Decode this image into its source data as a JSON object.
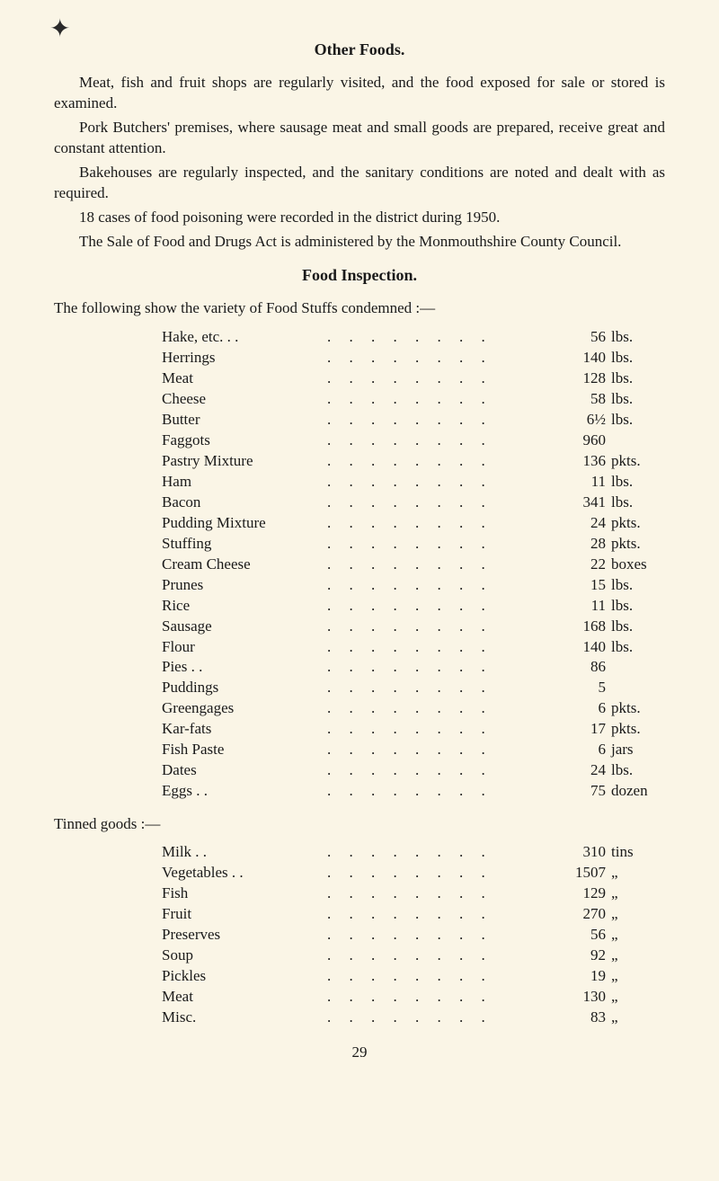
{
  "marker_glyph": "✦",
  "title1": "Other Foods.",
  "para1": "Meat, fish and fruit shops are regularly visited, and the food exposed for sale or stored is examined.",
  "para2": "Pork Butchers' premises, where sausage meat and small goods are prepared, receive great and constant attention.",
  "para3": "Bakehouses are regularly inspected, and the sanitary conditions are noted and dealt with as required.",
  "para4": "18 cases of food poisoning were recorded in the district during 1950.",
  "para5": "The Sale of Food and Drugs Act is administered by the Monmouthshire County Council.",
  "title2": "Food Inspection.",
  "intro2": "The following show the variety of Food Stuffs condemned :—",
  "items": [
    {
      "label": "Hake, etc. . .",
      "value": "56",
      "unit": "lbs."
    },
    {
      "label": "Herrings",
      "value": "140",
      "unit": "lbs."
    },
    {
      "label": "Meat",
      "value": "128",
      "unit": "lbs."
    },
    {
      "label": "Cheese",
      "value": "58",
      "unit": "lbs."
    },
    {
      "label": "Butter",
      "value": "6½",
      "unit": "lbs."
    },
    {
      "label": "Faggots",
      "value": "960",
      "unit": ""
    },
    {
      "label": "Pastry Mixture",
      "value": "136",
      "unit": "pkts."
    },
    {
      "label": "Ham",
      "value": "11",
      "unit": "lbs."
    },
    {
      "label": "Bacon",
      "value": "341",
      "unit": "lbs."
    },
    {
      "label": "Pudding Mixture",
      "value": "24",
      "unit": "pkts."
    },
    {
      "label": "Stuffing",
      "value": "28",
      "unit": "pkts."
    },
    {
      "label": "Cream Cheese",
      "value": "22",
      "unit": "boxes"
    },
    {
      "label": "Prunes",
      "value": "15",
      "unit": "lbs."
    },
    {
      "label": "Rice",
      "value": "11",
      "unit": "lbs."
    },
    {
      "label": "Sausage",
      "value": "168",
      "unit": "lbs."
    },
    {
      "label": "Flour",
      "value": "140",
      "unit": "lbs."
    },
    {
      "label": "Pies . .",
      "value": "86",
      "unit": ""
    },
    {
      "label": "Puddings",
      "value": "5",
      "unit": ""
    },
    {
      "label": "Greengages",
      "value": "6",
      "unit": "pkts."
    },
    {
      "label": "Kar-fats",
      "value": "17",
      "unit": "pkts."
    },
    {
      "label": "Fish Paste",
      "value": "6",
      "unit": "jars"
    },
    {
      "label": "Dates",
      "value": "24",
      "unit": "lbs."
    },
    {
      "label": "Eggs . .",
      "value": "75",
      "unit": "dozen"
    }
  ],
  "tinned_header": "Tinned goods :—",
  "tinned": [
    {
      "label": "Milk . .",
      "value": "310",
      "unit": "tins"
    },
    {
      "label": "Vegetables . .",
      "value": "1507",
      "unit": "„"
    },
    {
      "label": "Fish",
      "value": "129",
      "unit": "„"
    },
    {
      "label": "Fruit",
      "value": "270",
      "unit": "„"
    },
    {
      "label": "Preserves",
      "value": "56",
      "unit": "„"
    },
    {
      "label": "Soup",
      "value": "92",
      "unit": "„"
    },
    {
      "label": "Pickles",
      "value": "19",
      "unit": "„"
    },
    {
      "label": "Meat",
      "value": "130",
      "unit": "„"
    },
    {
      "label": "Misc.",
      "value": "83",
      "unit": "„"
    }
  ],
  "page_number": "29",
  "dots": ". . . . . . . ."
}
